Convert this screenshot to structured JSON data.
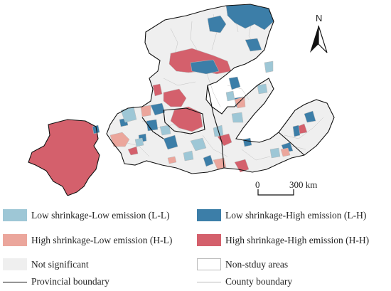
{
  "north_label": "N",
  "scale": {
    "start": "0",
    "end": "300 km"
  },
  "legend": [
    {
      "key": "ll",
      "label": "Low shrinkage-Low emission (L-L)",
      "color": "#9ec7d6"
    },
    {
      "key": "lh",
      "label": "Low shrinkage-High emission (L-H)",
      "color": "#3c7ea8"
    },
    {
      "key": "hl",
      "label": "High shrinkage-Low emission (H-L)",
      "color": "#eba69c"
    },
    {
      "key": "hh",
      "label": "High shrinkage-High emission (H-H)",
      "color": "#d4606c"
    },
    {
      "key": "ns",
      "label": "Not significant",
      "color": "#efefef"
    },
    {
      "key": "nsa",
      "label": "Non-stduy areas",
      "color": "#ffffff"
    },
    {
      "key": "prov",
      "label": "Provincial boundary",
      "color": "#111111"
    },
    {
      "key": "cty",
      "label": "County boundary",
      "color": "#bbbbbb"
    }
  ]
}
